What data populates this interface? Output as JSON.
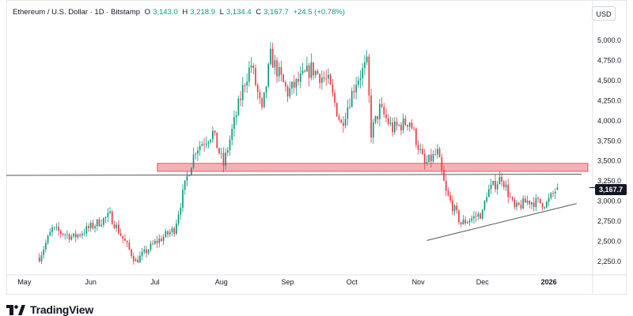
{
  "header": {
    "symbol": "Ethereum / U.S. Dollar · 1D · Bitstamp",
    "open_label": "O",
    "open": "3,143.0",
    "high_label": "H",
    "high": "3,218.9",
    "low_label": "L",
    "low": "3,134.4",
    "close_label": "C",
    "close": "3,167.7",
    "change": "+24.5 (+0.78%)"
  },
  "currency_button": "USD",
  "last_price_tag": "3,167.7",
  "brand": {
    "name": "TradingView"
  },
  "colors": {
    "up": "#089981",
    "down": "#f23645",
    "zone_fill": "#f7a1a8",
    "zone_border": "#f23645",
    "line": "#555555"
  },
  "chart_data": {
    "type": "candlestick",
    "y_axis": {
      "ticks": [
        2250,
        2500,
        2750,
        3000,
        3250,
        3500,
        3750,
        4000,
        4250,
        4500,
        4750,
        5000
      ],
      "tick_labels": [
        "2,250.0",
        "2,500.0",
        "2,750.0",
        "3,000.0",
        "3,250.0",
        "3,500.0",
        "3,750.0",
        "4,000.0",
        "4,250.0",
        "4,500.0",
        "4,750.0",
        "5,000.0"
      ],
      "range": [
        2130,
        5130
      ]
    },
    "x_axis": {
      "labels": [
        "May",
        "Jun",
        "Jul",
        "Aug",
        "Sep",
        "Oct",
        "Nov",
        "Dec",
        "2026"
      ],
      "label_dates": [
        "2025-05-01",
        "2025-06-01",
        "2025-07-01",
        "2025-08-01",
        "2025-09-01",
        "2025-10-01",
        "2025-11-01",
        "2025-12-01",
        "2026-01-01"
      ],
      "range": [
        "2025-04-27",
        "2026-01-20"
      ]
    },
    "price_path": [
      [
        "2025-05-08",
        2300
      ],
      [
        "2025-05-14",
        2650
      ],
      [
        "2025-05-24",
        2550
      ],
      [
        "2025-06-10",
        2820
      ],
      [
        "2025-06-22",
        2250
      ],
      [
        "2025-07-01",
        2480
      ],
      [
        "2025-07-10",
        2650
      ],
      [
        "2025-07-16",
        3300
      ],
      [
        "2025-07-20",
        3650
      ],
      [
        "2025-07-28",
        3850
      ],
      [
        "2025-08-02",
        3450
      ],
      [
        "2025-08-12",
        4500
      ],
      [
        "2025-08-15",
        4700
      ],
      [
        "2025-08-20",
        4100
      ],
      [
        "2025-08-24",
        4800
      ],
      [
        "2025-09-01",
        4350
      ],
      [
        "2025-09-12",
        4650
      ],
      [
        "2025-09-20",
        4480
      ],
      [
        "2025-09-26",
        3950
      ],
      [
        "2025-10-03",
        4500
      ],
      [
        "2025-10-08",
        4700
      ],
      [
        "2025-10-10",
        3850
      ],
      [
        "2025-10-14",
        4150
      ],
      [
        "2025-10-20",
        3900
      ],
      [
        "2025-10-28",
        4000
      ],
      [
        "2025-11-04",
        3450
      ],
      [
        "2025-11-10",
        3600
      ],
      [
        "2025-11-14",
        3100
      ],
      [
        "2025-11-21",
        2720
      ],
      [
        "2025-12-01",
        2850
      ],
      [
        "2025-12-03",
        3100
      ],
      [
        "2025-12-10",
        3300
      ],
      [
        "2025-12-16",
        2900
      ],
      [
        "2025-12-22",
        3000
      ],
      [
        "2025-12-31",
        2970
      ],
      [
        "2026-01-05",
        3167.7
      ]
    ],
    "annotations": {
      "resistance_zone": {
        "y_low": 3370,
        "y_high": 3470,
        "x_start": "2025-07-01",
        "x_end": "2026-01-20"
      },
      "horizontal_line": {
        "y_start": 3320,
        "y_end": 3335
      },
      "trendline": {
        "x_start": "2025-11-05",
        "y_start": 2510,
        "x_end": "2026-01-14",
        "y_end": 2970
      }
    },
    "last_price": 3167.7,
    "legend": "none",
    "grid": false
  }
}
